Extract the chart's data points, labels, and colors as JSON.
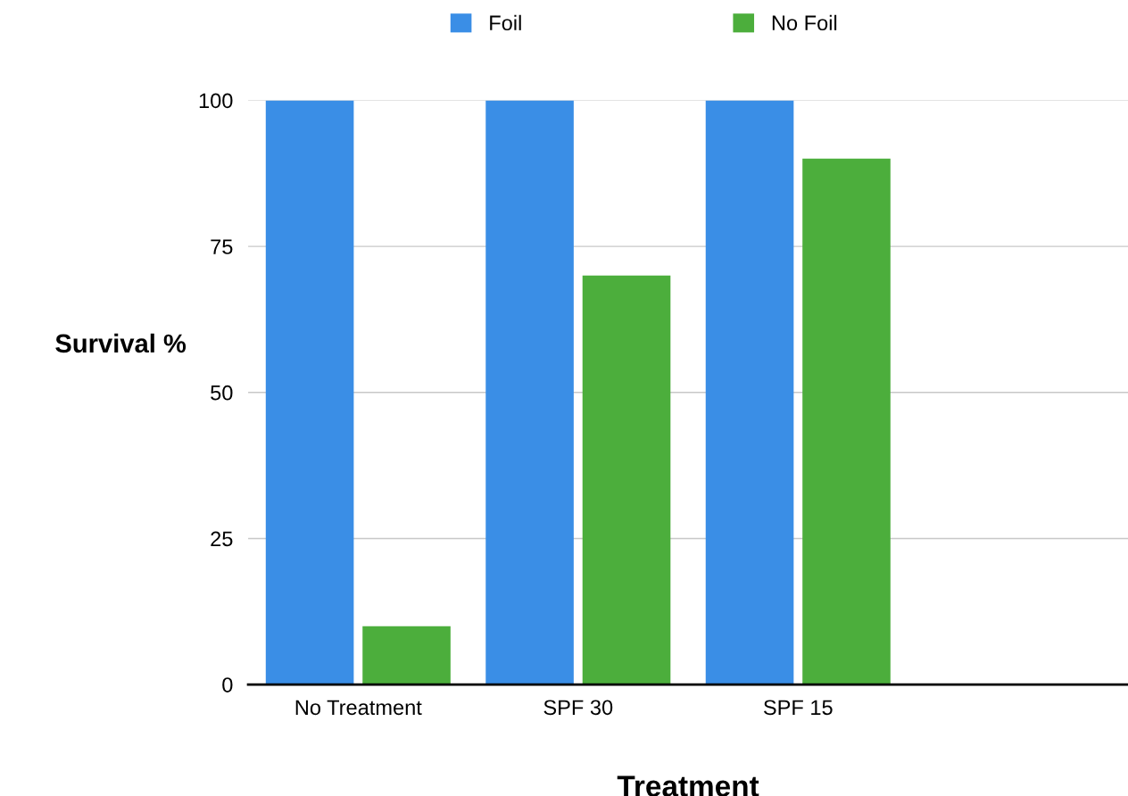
{
  "chart_data": {
    "type": "bar",
    "xlabel": "Treatment",
    "ylabel": "Survival %",
    "categories": [
      "No Treatment",
      "SPF 30",
      "SPF 15",
      null
    ],
    "series": [
      {
        "name": "Foil",
        "color": "#3a8ee6",
        "values": [
          100,
          100,
          100,
          null
        ]
      },
      {
        "name": "No Foil",
        "color": "#4cae3c",
        "values": [
          10,
          70,
          90,
          null
        ]
      }
    ],
    "ylim": [
      0,
      100
    ],
    "yticks": [
      0,
      25,
      50,
      75,
      100
    ],
    "grid": "y",
    "legend": "top"
  }
}
